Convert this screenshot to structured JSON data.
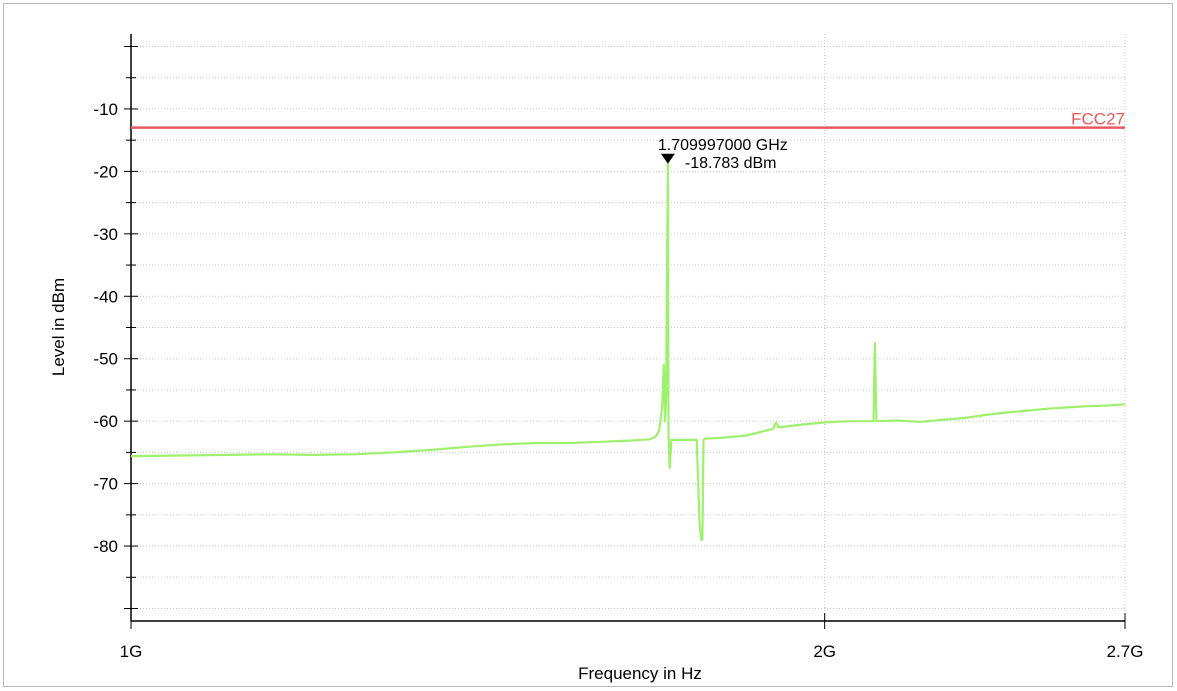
{
  "chart_data": {
    "type": "line",
    "xlabel": "Frequency in Hz",
    "ylabel": "Level in dBm",
    "x_scale": "log",
    "xlim": [
      1000000000,
      2700000000
    ],
    "ylim": [
      -92,
      2
    ],
    "x_ticks": [
      {
        "value": 1000000000,
        "label": "1G"
      },
      {
        "value": 2000000000,
        "label": "2G"
      },
      {
        "value": 2700000000,
        "label": "2.7G"
      }
    ],
    "y_ticks": [
      {
        "value": -10,
        "label": "-10"
      },
      {
        "value": -20,
        "label": "-20"
      },
      {
        "value": -30,
        "label": "-30"
      },
      {
        "value": -40,
        "label": "-40"
      },
      {
        "value": -50,
        "label": "-50"
      },
      {
        "value": -60,
        "label": "-60"
      },
      {
        "value": -70,
        "label": "-70"
      },
      {
        "value": -80,
        "label": "-80"
      }
    ],
    "grid": true,
    "limit_line": {
      "name": "FCC27",
      "value": -13,
      "color": "#e8595b"
    },
    "marker": {
      "frequency": "1.709997000 GHz",
      "level": "-18.783 dBm",
      "x": 1709997000,
      "y": -18.783
    },
    "series": [
      {
        "color": "#9ef06e",
        "points": [
          [
            1000000000,
            -65.6
          ],
          [
            1050000000,
            -65.5
          ],
          [
            1100000000,
            -65.4
          ],
          [
            1150000000,
            -65.3
          ],
          [
            1200000000,
            -65.4
          ],
          [
            1250000000,
            -65.3
          ],
          [
            1300000000,
            -65.0
          ],
          [
            1350000000,
            -64.6
          ],
          [
            1400000000,
            -64.1
          ],
          [
            1450000000,
            -63.7
          ],
          [
            1500000000,
            -63.5
          ],
          [
            1550000000,
            -63.5
          ],
          [
            1600000000,
            -63.3
          ],
          [
            1650000000,
            -63.1
          ],
          [
            1680000000,
            -62.9
          ],
          [
            1690000000,
            -62.4
          ],
          [
            1695000000,
            -61.5
          ],
          [
            1700000000,
            -58.0
          ],
          [
            1703000000,
            -51.0
          ],
          [
            1705000000,
            -60.0
          ],
          [
            1707000000,
            -56.0
          ],
          [
            1709997000,
            -18.783
          ],
          [
            1711000000,
            -62.0
          ],
          [
            1713000000,
            -67.5
          ],
          [
            1716000000,
            -63.0
          ],
          [
            1760000000,
            -63.0
          ],
          [
            1765000000,
            -76.5
          ],
          [
            1768000000,
            -79.0
          ],
          [
            1770000000,
            -79.0
          ],
          [
            1772000000,
            -63.0
          ],
          [
            1775000000,
            -62.8
          ],
          [
            1800000000,
            -62.7
          ],
          [
            1850000000,
            -62.3
          ],
          [
            1900000000,
            -61.2
          ],
          [
            1905000000,
            -60.2
          ],
          [
            1910000000,
            -61.0
          ],
          [
            1950000000,
            -60.6
          ],
          [
            2000000000,
            -60.2
          ],
          [
            2050000000,
            -60.0
          ],
          [
            2100000000,
            -60.0
          ],
          [
            2103000000,
            -47.5
          ],
          [
            2106000000,
            -60.0
          ],
          [
            2150000000,
            -59.9
          ],
          [
            2200000000,
            -60.1
          ],
          [
            2250000000,
            -59.8
          ],
          [
            2300000000,
            -59.5
          ],
          [
            2350000000,
            -59.0
          ],
          [
            2400000000,
            -58.6
          ],
          [
            2450000000,
            -58.3
          ],
          [
            2500000000,
            -58.0
          ],
          [
            2550000000,
            -57.8
          ],
          [
            2600000000,
            -57.6
          ],
          [
            2650000000,
            -57.5
          ],
          [
            2700000000,
            -57.3
          ]
        ]
      }
    ]
  }
}
